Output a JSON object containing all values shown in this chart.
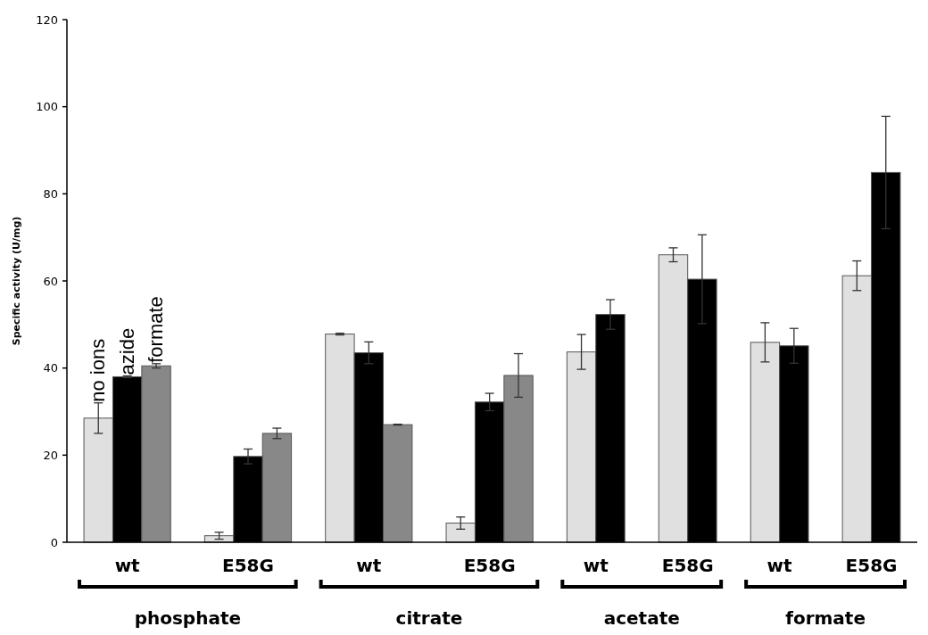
{
  "chart_data": {
    "type": "bar",
    "ylabel": "Specific activity (U/mg)",
    "categories": [
      "wt",
      "E58G",
      "wt",
      "E58G",
      "wt",
      "E58G",
      "wt",
      "E58G"
    ],
    "series": [
      {
        "name": "no ions",
        "color": "#e0e0e0",
        "values": [
          28.5,
          1.5,
          47.8,
          4.4,
          43.7,
          66,
          45.9,
          61.2
        ],
        "errors": [
          3.5,
          0.8,
          0.2,
          1.4,
          4,
          1.6,
          4.5,
          3.4
        ]
      },
      {
        "name": "azide",
        "color": "#000000",
        "values": [
          38,
          19.7,
          43.5,
          32.2,
          52.3,
          60.4,
          45.1,
          84.9
        ],
        "errors": [
          0.2,
          1.7,
          2.5,
          2,
          3.4,
          10.2,
          4,
          12.9
        ]
      },
      {
        "name": "formate",
        "color": "#888888",
        "values": [
          40.5,
          25,
          27,
          38.3,
          null,
          null,
          null,
          null
        ],
        "errors": [
          0.5,
          1.2,
          0.1,
          5,
          null,
          null,
          null,
          null
        ]
      }
    ],
    "annotations": [
      "phosphate",
      "citrate",
      "acetate",
      "formate"
    ],
    "ylim": [
      0,
      120
    ],
    "yticks": [
      0,
      20,
      40,
      60,
      80,
      100,
      120
    ],
    "grid": false
  }
}
